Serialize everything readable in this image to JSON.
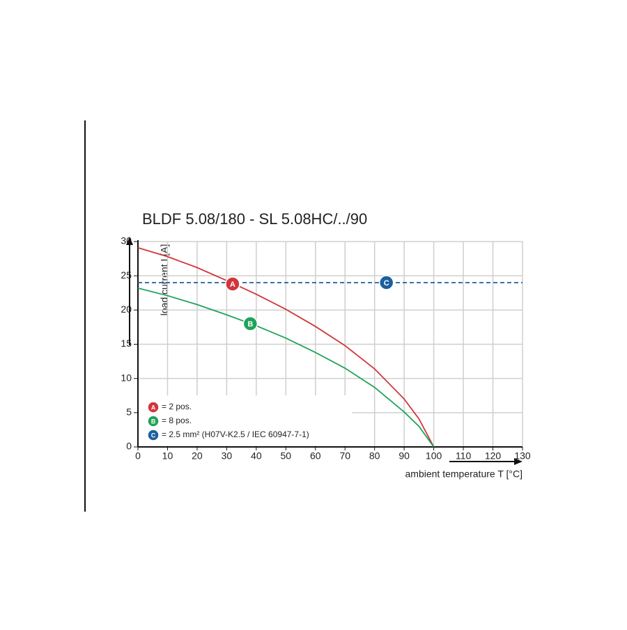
{
  "chart_data": {
    "type": "line",
    "title": "BLDF 5.08/180 - SL 5.08HC/../90",
    "x_label": "ambient temperature T [°C]",
    "y_label": "load current I [A]",
    "xlim": [
      0,
      130
    ],
    "xticks": [
      0,
      10,
      20,
      30,
      40,
      50,
      60,
      70,
      80,
      90,
      100,
      110,
      120,
      130
    ],
    "ylim": [
      0,
      30
    ],
    "yticks": [
      0,
      5,
      10,
      15,
      20,
      25,
      30
    ],
    "grid": true,
    "series": [
      {
        "name": "A",
        "description": "= 2 pos.",
        "color": "#d2353b",
        "dashed": false,
        "x": [
          0,
          10,
          20,
          30,
          40,
          50,
          60,
          70,
          80,
          90,
          95,
          100
        ],
        "values": [
          29.1,
          27.8,
          26.2,
          24.3,
          22.3,
          20.1,
          17.6,
          14.8,
          11.4,
          7.0,
          4.1,
          0
        ],
        "marker_x": 32,
        "marker_y": 23.8
      },
      {
        "name": "B",
        "description": "= 8 pos.",
        "color": "#1fa35a",
        "dashed": false,
        "x": [
          0,
          10,
          20,
          30,
          40,
          50,
          60,
          70,
          80,
          90,
          95,
          100
        ],
        "values": [
          23.2,
          22.1,
          20.8,
          19.3,
          17.7,
          15.9,
          13.8,
          11.5,
          8.7,
          5.1,
          3.0,
          0
        ],
        "marker_x": 38,
        "marker_y": 18
      },
      {
        "name": "C",
        "description": "= 2.5 mm² (H07V-K2.5 / IEC 60947-7-1)",
        "color": "#1d5f9f",
        "dashed": true,
        "x": [
          0,
          130
        ],
        "values": [
          24,
          24
        ],
        "marker_x": 84,
        "marker_y": 24
      }
    ]
  }
}
